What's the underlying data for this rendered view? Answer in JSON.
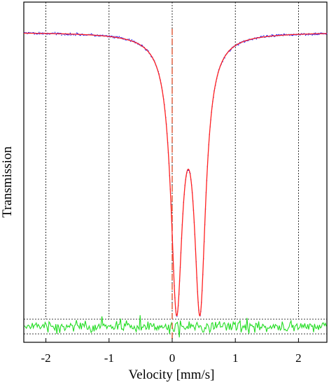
{
  "chart_data": {
    "type": "scatter",
    "title": "",
    "xlabel": "Velocity [mm/s]",
    "ylabel": "Transmission",
    "xlim": [
      -2.35,
      2.45
    ],
    "x_ticks": [
      -2,
      -1,
      0,
      1,
      2
    ],
    "x_tick_labels": [
      "-2",
      "-1",
      "0",
      "1",
      "2"
    ],
    "y_tick_labels": [],
    "grid": "dotted vertical lines at x ticks",
    "reference_line_x": 0,
    "fit_model": {
      "kind": "quadrupole doublet (two Lorentzian lines)",
      "line_centers": [
        0.07,
        0.44
      ],
      "fwhm": 0.22,
      "relative_depth": 0.9,
      "baseline": 1.0
    },
    "series": [],
    "colors": {
      "data_points": "#1a1aff",
      "fit_line": "#ff2020",
      "reference_line": "#e06040",
      "residuals": "#22dd22",
      "grid": "#000000"
    }
  }
}
